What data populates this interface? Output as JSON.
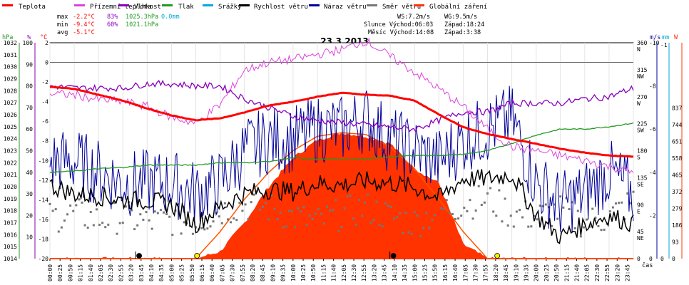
{
  "chart_data": {
    "type": "line",
    "title": "23.3.2013",
    "legend": [
      {
        "name": "Teplota",
        "color": "#ff0000"
      },
      {
        "name": "Přízemní teplota",
        "color": "#dd44dd"
      },
      {
        "name": "Vlhkost",
        "color": "#8800bb"
      },
      {
        "name": "Tlak",
        "color": "#229922"
      },
      {
        "name": "Srážky",
        "color": "#00aadd"
      },
      {
        "name": "Rychlost větru",
        "color": "#000000"
      },
      {
        "name": "Náraz větru",
        "color": "#000099"
      },
      {
        "name": "Směr větru",
        "color": "#777777"
      },
      {
        "name": "Globální záření",
        "color": "#ff3300"
      }
    ],
    "stats": {
      "max_label": "max",
      "max_temp": "-2.2°C",
      "max_hum": "83%",
      "max_press": "1025.3hPa",
      "precip": "0.0mm",
      "min_label": "min",
      "min_temp": "-9.4°C",
      "min_hum": "60%",
      "min_press": "1021.1hPa",
      "avg_label": "avg",
      "avg_temp": "-5.1°C"
    },
    "wind_sun": {
      "ws": "WS:7.2m/s",
      "wg": "WG:9.5m/s",
      "sun_rise": "Slunce Východ:06:03",
      "sun_set": "Západ:18:24",
      "moon_rise": "Měsíc Východ:14:08",
      "moon_set": "Západ:3:38"
    },
    "axes": {
      "hpa_unit": "hPa",
      "pct_unit": "%",
      "c_unit": "°C",
      "ms_unit": "m/s",
      "mm_unit": "mm",
      "w_unit": "W",
      "x_label": "čas",
      "hpa_ticks": [
        "1032",
        "1031",
        "1030",
        "1029",
        "1028",
        "1027",
        "1026",
        "1025",
        "1024",
        "1023",
        "1022",
        "1021",
        "1020",
        "1019",
        "1018",
        "1017",
        "1016",
        "1015",
        "1014"
      ],
      "pct_ticks": [
        "100",
        "90",
        "80",
        "70",
        "60",
        "50",
        "40",
        "30",
        "20",
        "10"
      ],
      "c_ticks": [
        "2",
        "0",
        "-2",
        "-4",
        "-6",
        "-8",
        "-10",
        "-12",
        "-14",
        "-16",
        "-18",
        "-20"
      ],
      "dir_ticks": [
        "360",
        "N",
        "315",
        "NW",
        "270",
        "W",
        "225",
        "SW",
        "180",
        "S",
        "135",
        "SE",
        "90",
        "E",
        "45",
        "NE",
        "0"
      ],
      "ms_ticks": [
        "-10",
        "-8",
        "-6",
        "-4",
        "-2",
        "0"
      ],
      "mm_ticks": [
        "-1",
        "0"
      ],
      "w_ticks": [
        "837",
        "744",
        "651",
        "558",
        "465",
        "372",
        "279",
        "186",
        "93",
        "0"
      ],
      "x_ticks": [
        "00:00",
        "00:25",
        "00:50",
        "01:15",
        "01:40",
        "02:05",
        "02:30",
        "02:55",
        "03:20",
        "03:45",
        "04:10",
        "04:35",
        "05:00",
        "05:25",
        "05:50",
        "06:15",
        "06:40",
        "07:05",
        "07:30",
        "07:55",
        "08:20",
        "08:45",
        "09:10",
        "09:35",
        "10:00",
        "10:25",
        "10:50",
        "11:15",
        "11:40",
        "12:05",
        "12:30",
        "12:55",
        "13:20",
        "13:45",
        "14:10",
        "14:35",
        "15:00",
        "15:25",
        "15:50",
        "16:15",
        "16:40",
        "17:05",
        "17:30",
        "17:55",
        "18:20",
        "18:45",
        "19:10",
        "19:35",
        "20:00",
        "20:25",
        "20:50",
        "21:15",
        "21:40",
        "22:05",
        "22:30",
        "22:55",
        "23:20",
        "23:45"
      ]
    },
    "ranges": {
      "temp_c": [
        -20,
        2
      ],
      "humidity_pct": [
        0,
        100
      ],
      "pressure_hpa": [
        1014,
        1032
      ],
      "wind_ms": [
        0,
        10
      ],
      "radiation_w": [
        0,
        837
      ],
      "direction_deg": [
        0,
        360
      ]
    },
    "hours": [
      0,
      1,
      2,
      3,
      4,
      5,
      6,
      7,
      8,
      9,
      10,
      11,
      12,
      13,
      14,
      15,
      16,
      17,
      18,
      19,
      20,
      21,
      22,
      23,
      24
    ],
    "series": {
      "teplota": [
        -2.5,
        -2.7,
        -3.3,
        -3.9,
        -4.7,
        -5.4,
        -5.9,
        -5.7,
        -5.1,
        -4.4,
        -4.0,
        -3.5,
        -3.1,
        -3.3,
        -3.4,
        -3.9,
        -5.3,
        -6.6,
        -7.3,
        -7.8,
        -8.3,
        -8.8,
        -9.2,
        -9.5,
        -9.6
      ],
      "prizemni": [
        -3.2,
        -3.3,
        -3.8,
        -4.0,
        -4.5,
        -5.6,
        -6.2,
        -4.3,
        -0.8,
        0.0,
        0.3,
        0.8,
        1.3,
        2.2,
        0.6,
        -1.0,
        -2.7,
        -4.5,
        -6.8,
        -8.6,
        -9.0,
        -9.5,
        -10.0,
        -10.6,
        -11.2
      ],
      "vlhkost": [
        80,
        79,
        79,
        79,
        81,
        81,
        80,
        80,
        74,
        70,
        66,
        64,
        63,
        62,
        61,
        60,
        64,
        68,
        68,
        72,
        72,
        72,
        74,
        75,
        79
      ],
      "tlak": [
        1021.2,
        1021.3,
        1021.5,
        1021.6,
        1021.8,
        1021.8,
        1021.8,
        1022.0,
        1022.0,
        1022.1,
        1022.4,
        1022.3,
        1022.3,
        1022.3,
        1022.5,
        1022.6,
        1022.6,
        1022.7,
        1023.0,
        1023.6,
        1024.3,
        1024.8,
        1024.8,
        1025.0,
        1025.3
      ],
      "rychlost": [
        3.4,
        3.0,
        2.9,
        2.7,
        2.7,
        2.5,
        1.6,
        2.4,
        3.0,
        3.2,
        3.1,
        3.5,
        3.4,
        3.6,
        3.5,
        3.3,
        2.8,
        3.7,
        3.7,
        3.9,
        2.0,
        1.0,
        1.6,
        2.0,
        1.6
      ],
      "naraz": [
        4.5,
        4.5,
        4.0,
        3.5,
        3.5,
        3.5,
        3.0,
        3.5,
        5.0,
        5.5,
        5.5,
        6.0,
        6.0,
        6.5,
        5.5,
        5.0,
        4.5,
        5.5,
        6.0,
        6.5,
        3.5,
        2.5,
        3.0,
        4.0,
        3.0
      ],
      "smer": [
        70,
        75,
        65,
        70,
        60,
        65,
        60,
        80,
        90,
        85,
        70,
        60,
        75,
        85,
        70,
        60,
        80,
        90,
        100,
        75,
        70,
        80,
        60,
        70,
        95
      ],
      "zareni": [
        0,
        0,
        0,
        0,
        0,
        0,
        0,
        40,
        200,
        400,
        560,
        660,
        700,
        680,
        640,
        500,
        420,
        80,
        0,
        0,
        0,
        0,
        0,
        0,
        0
      ],
      "zareni_teor": [
        0,
        0,
        0,
        0,
        0,
        0,
        0,
        150,
        330,
        480,
        600,
        680,
        700,
        690,
        620,
        500,
        330,
        150,
        0,
        0,
        0,
        0,
        0,
        0,
        0
      ]
    },
    "markers": [
      {
        "time": 3.67,
        "color": "#000000"
      },
      {
        "time": 6.05,
        "color": "#ffee00"
      },
      {
        "time": 14.13,
        "color": "#000000"
      },
      {
        "time": 18.4,
        "color": "#ffee00"
      }
    ]
  }
}
